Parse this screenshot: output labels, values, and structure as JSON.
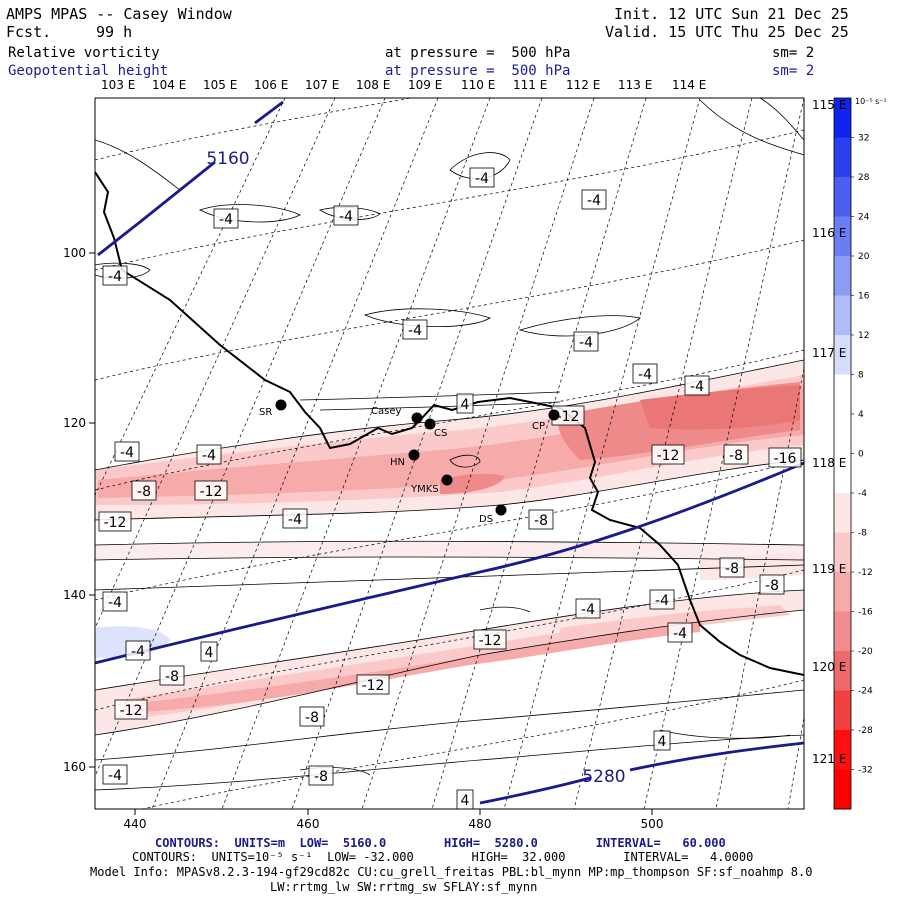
{
  "header": {
    "title": "AMPS MPAS -- Casey Window",
    "fcst_label": "Fcst.",
    "fcst_hours": "99 h",
    "init": "Init. 12 UTC Sun 21 Dec 25",
    "valid": "Valid. 15 UTC Thu 25 Dec 25",
    "field1": "Relative vorticity",
    "field2": "Geopotential height",
    "pressure1": "at pressure =  500 hPa",
    "pressure2": "at pressure =  500 hPa",
    "sm1": "sm= 2",
    "sm2": "sm= 2"
  },
  "colors": {
    "height_contour": "#1a1a8c",
    "positive_max": "#1a3ae8",
    "negative_max": "#ff1a1a"
  },
  "map": {
    "top_lon_labels": [
      "103 E",
      "104 E",
      "105 E",
      "106 E",
      "107 E",
      "108 E",
      "109 E",
      "110 E",
      "111 E",
      "112 E",
      "113 E",
      "114 E"
    ],
    "right_lon_labels": [
      "115 E",
      "116 E",
      "117 E",
      "118 E",
      "119 E",
      "120 E",
      "121 E"
    ],
    "x_ticks": [
      "440",
      "460",
      "480",
      "500"
    ],
    "y_ticks": [
      "100",
      "120",
      "140",
      "160"
    ],
    "stations": [
      "SR",
      "Casey",
      "CS",
      "CP",
      "HN",
      "YMKS",
      "DS"
    ],
    "height_labels": [
      "5160",
      "5280"
    ],
    "vort_labels": [
      "-4",
      "-4",
      "-4",
      "-4",
      "-4",
      "-4",
      "-4",
      "-4",
      "4",
      "-4",
      "-4",
      "-12",
      "-4",
      "-8",
      "-12",
      "-12",
      "-8",
      "-16",
      "-12",
      "-8",
      "-4",
      "-4",
      "-8",
      "-4",
      "-8",
      "-4",
      "-4",
      "-4",
      "-8",
      "-12",
      "4",
      "-8",
      "-12",
      "-12",
      "-8",
      "4",
      "-4",
      "4"
    ]
  },
  "colorbar": {
    "unit": "10⁻⁵ s⁻¹",
    "levels": [
      "32",
      "28",
      "24",
      "20",
      "16",
      "12",
      "8",
      "4",
      "0",
      "-4",
      "-8",
      "-12",
      "-16",
      "-20",
      "-24",
      "-28",
      "-32"
    ]
  },
  "footer": {
    "contours1": "CONTOURS:  UNITS=m  LOW=  5160.0        HIGH=  5280.0        INTERVAL=   60.000",
    "contours2": "CONTOURS:  UNITS=10⁻⁵ s⁻¹  LOW= -32.000        HIGH=  32.000        INTERVAL=   4.0000",
    "model_info": "Model Info: MPASv8.2.3-194-gf29cd82c CU:cu_grell_freitas PBL:bl_mynn MP:mp_thompson SF:sf_noahmp 8.0",
    "model_info2": "LW:rrtmg_lw SW:rrtmg_sw SFLAY:sf_mynn"
  }
}
